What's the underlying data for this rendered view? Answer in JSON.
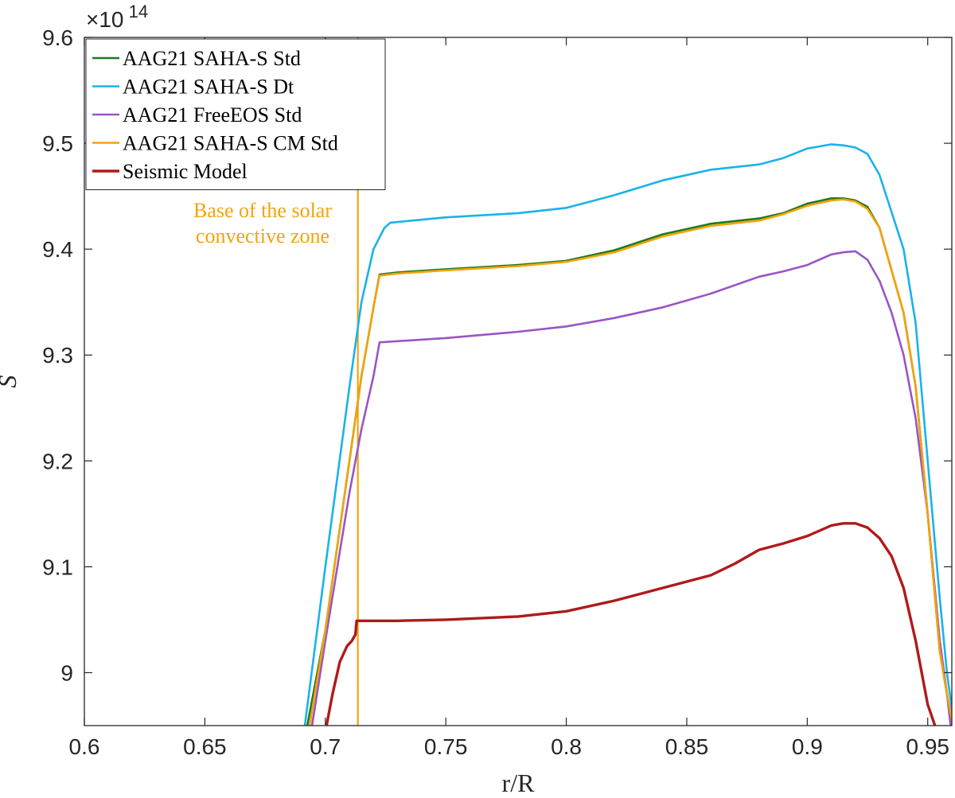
{
  "chart_data": {
    "type": "line",
    "xlabel": "r/R",
    "ylabel": "S",
    "xlim": [
      0.6,
      0.96
    ],
    "ylim": [
      8.95,
      9.6
    ],
    "y_scale_multiplier": "×10",
    "y_scale_exponent": "14",
    "grid": false,
    "legend_position": "top-left",
    "x_ticks": [
      {
        "value": 0.6,
        "label": "0.6"
      },
      {
        "value": 0.65,
        "label": "0.65"
      },
      {
        "value": 0.7,
        "label": "0.7"
      },
      {
        "value": 0.75,
        "label": "0.75"
      },
      {
        "value": 0.8,
        "label": "0.8"
      },
      {
        "value": 0.85,
        "label": "0.85"
      },
      {
        "value": 0.9,
        "label": "0.9"
      },
      {
        "value": 0.95,
        "label": "0.95"
      }
    ],
    "y_ticks": [
      {
        "value": 9.0,
        "label": "9"
      },
      {
        "value": 9.1,
        "label": "9.1"
      },
      {
        "value": 9.2,
        "label": "9.2"
      },
      {
        "value": 9.3,
        "label": "9.3"
      },
      {
        "value": 9.4,
        "label": "9.4"
      },
      {
        "value": 9.5,
        "label": "9.5"
      },
      {
        "value": 9.6,
        "label": "9.6"
      }
    ],
    "vline": {
      "x": 0.7135,
      "color": "#f4a30b"
    },
    "annotation": {
      "lines": [
        "Base of the solar",
        "convective zone"
      ],
      "color": "#f4a30b"
    },
    "series": [
      {
        "name": "AAG21 SAHA-S Std",
        "color": "#1e7a1e",
        "x": [
          0.6925,
          0.7,
          0.71,
          0.715,
          0.72,
          0.7225,
          0.73,
          0.75,
          0.78,
          0.8,
          0.82,
          0.84,
          0.86,
          0.88,
          0.89,
          0.9,
          0.91,
          0.915,
          0.92,
          0.925,
          0.93,
          0.94,
          0.945,
          0.95,
          0.955,
          0.958,
          0.9605
        ],
        "y": [
          8.95,
          9.04,
          9.2,
          9.28,
          9.345,
          9.376,
          9.378,
          9.381,
          9.385,
          9.389,
          9.399,
          9.414,
          9.424,
          9.429,
          9.434,
          9.443,
          9.448,
          9.448,
          9.446,
          9.44,
          9.42,
          9.34,
          9.27,
          9.15,
          9.02,
          8.98,
          8.95
        ]
      },
      {
        "name": "AAG21 SAHA-S Dt",
        "color": "#1ab2ea",
        "x": [
          0.6915,
          0.7,
          0.71,
          0.715,
          0.72,
          0.7245,
          0.727,
          0.75,
          0.78,
          0.8,
          0.82,
          0.84,
          0.86,
          0.88,
          0.89,
          0.9,
          0.91,
          0.915,
          0.92,
          0.925,
          0.93,
          0.94,
          0.945,
          0.95,
          0.955,
          0.958,
          0.961
        ],
        "y": [
          8.95,
          9.1,
          9.27,
          9.35,
          9.4,
          9.42,
          9.425,
          9.43,
          9.434,
          9.439,
          9.451,
          9.465,
          9.475,
          9.48,
          9.486,
          9.495,
          9.499,
          9.498,
          9.496,
          9.49,
          9.47,
          9.4,
          9.33,
          9.2,
          9.07,
          9.0,
          8.95
        ]
      },
      {
        "name": "AAG21 FreeEOS Std",
        "color": "#9a55c4",
        "x": [
          0.6945,
          0.7,
          0.705,
          0.71,
          0.715,
          0.72,
          0.7225,
          0.75,
          0.78,
          0.8,
          0.82,
          0.84,
          0.86,
          0.88,
          0.89,
          0.9,
          0.91,
          0.915,
          0.92,
          0.925,
          0.93,
          0.935,
          0.94,
          0.945,
          0.95,
          0.955,
          0.958,
          0.9595
        ],
        "y": [
          8.95,
          9.03,
          9.1,
          9.17,
          9.23,
          9.28,
          9.312,
          9.316,
          9.322,
          9.327,
          9.335,
          9.345,
          9.358,
          9.374,
          9.379,
          9.385,
          9.395,
          9.397,
          9.398,
          9.39,
          9.37,
          9.34,
          9.3,
          9.24,
          9.15,
          9.03,
          8.98,
          8.95
        ]
      },
      {
        "name": "AAG21 SAHA-S CM Std",
        "color": "#f4a30b",
        "x": [
          0.6935,
          0.7,
          0.71,
          0.715,
          0.72,
          0.7225,
          0.73,
          0.75,
          0.78,
          0.8,
          0.82,
          0.84,
          0.86,
          0.88,
          0.89,
          0.9,
          0.91,
          0.915,
          0.92,
          0.925,
          0.93,
          0.94,
          0.945,
          0.95,
          0.955,
          0.958,
          0.9605
        ],
        "y": [
          8.95,
          9.04,
          9.2,
          9.28,
          9.345,
          9.375,
          9.377,
          9.38,
          9.384,
          9.388,
          9.397,
          9.412,
          9.422,
          9.427,
          9.433,
          9.441,
          9.446,
          9.447,
          9.445,
          9.438,
          9.42,
          9.34,
          9.27,
          9.15,
          9.02,
          8.98,
          8.95
        ]
      },
      {
        "name": "Seismic Model",
        "color": "#b01a1a",
        "x": [
          0.7005,
          0.703,
          0.706,
          0.709,
          0.711,
          0.7125,
          0.713,
          0.73,
          0.75,
          0.78,
          0.8,
          0.82,
          0.84,
          0.86,
          0.87,
          0.88,
          0.89,
          0.9,
          0.91,
          0.915,
          0.92,
          0.925,
          0.93,
          0.935,
          0.94,
          0.945,
          0.95,
          0.953
        ],
        "y": [
          8.95,
          8.98,
          9.01,
          9.025,
          9.03,
          9.036,
          9.049,
          9.049,
          9.05,
          9.053,
          9.058,
          9.068,
          9.08,
          9.092,
          9.103,
          9.116,
          9.122,
          9.129,
          9.139,
          9.141,
          9.141,
          9.137,
          9.127,
          9.11,
          9.08,
          9.03,
          8.97,
          8.95
        ]
      }
    ]
  }
}
